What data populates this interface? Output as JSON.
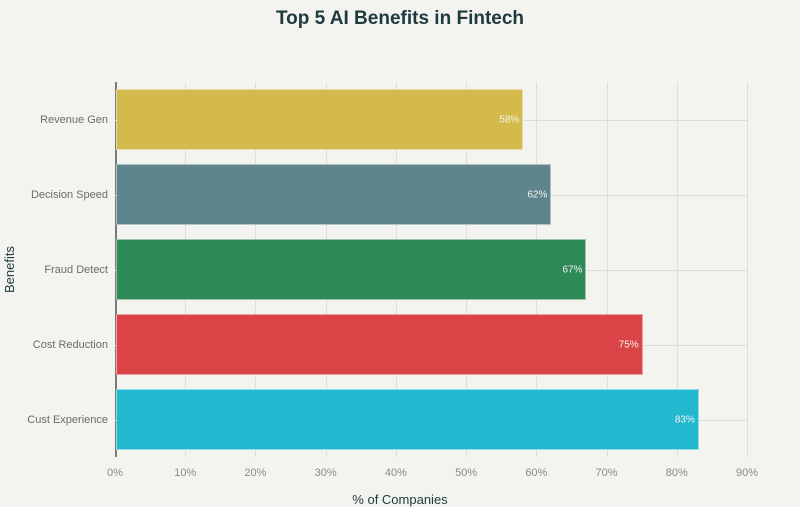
{
  "chart_data": {
    "type": "bar",
    "orientation": "horizontal",
    "title": "Top 5 AI Benefits in Fintech",
    "xlabel": "% of Companies",
    "ylabel": "Benefits",
    "categories": [
      "Revenue Gen",
      "Decision Speed",
      "Fraud Detect",
      "Cost Reduction",
      "Cust Experience"
    ],
    "values": [
      58,
      62,
      67,
      75,
      83
    ],
    "data_labels": [
      "58%",
      "62%",
      "67%",
      "75%",
      "83%"
    ],
    "colors": [
      "#d4b94c",
      "#5e858b",
      "#2e8a57",
      "#db4446",
      "#22b8cf"
    ],
    "xlim": [
      0,
      90
    ],
    "xticks": [
      "0%",
      "10%",
      "20%",
      "30%",
      "40%",
      "50%",
      "60%",
      "70%",
      "80%",
      "90%"
    ],
    "grid": true,
    "legend": false
  }
}
